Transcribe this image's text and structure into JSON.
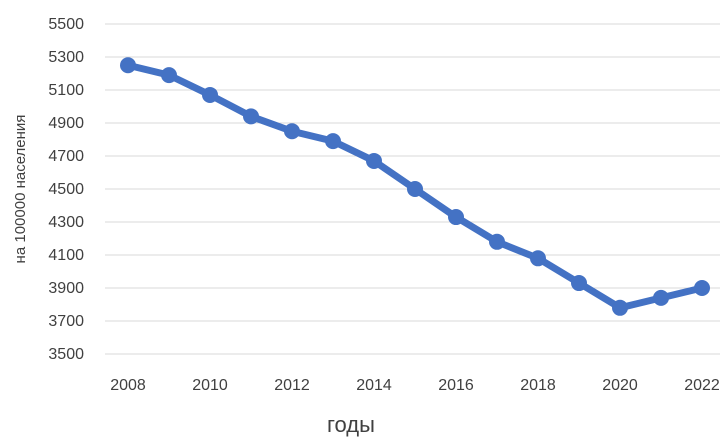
{
  "chart_data": {
    "type": "line",
    "title": "",
    "xlabel": "годы",
    "ylabel": "на 100000 населения",
    "x": [
      2008,
      2009,
      2010,
      2011,
      2012,
      2013,
      2014,
      2015,
      2016,
      2017,
      2018,
      2019,
      2020,
      2021,
      2022
    ],
    "series": [
      {
        "values": [
          5250,
          5190,
          5070,
          4940,
          4850,
          4790,
          4670,
          4500,
          4330,
          4180,
          4080,
          3930,
          3780,
          3840,
          3900
        ]
      }
    ],
    "x_ticks": [
      "2008",
      "2010",
      "2012",
      "2014",
      "2016",
      "2018",
      "2020",
      "2022"
    ],
    "y_ticks": [
      "3500",
      "3700",
      "3900",
      "4100",
      "4300",
      "4500",
      "4700",
      "4900",
      "5100",
      "5300",
      "5500"
    ],
    "ylim": [
      3500,
      5500
    ],
    "grid": "horizontal",
    "legend": "none",
    "colors": {
      "line": "#4472c4",
      "grid": "#d9d9d9",
      "text": "#404040"
    }
  }
}
